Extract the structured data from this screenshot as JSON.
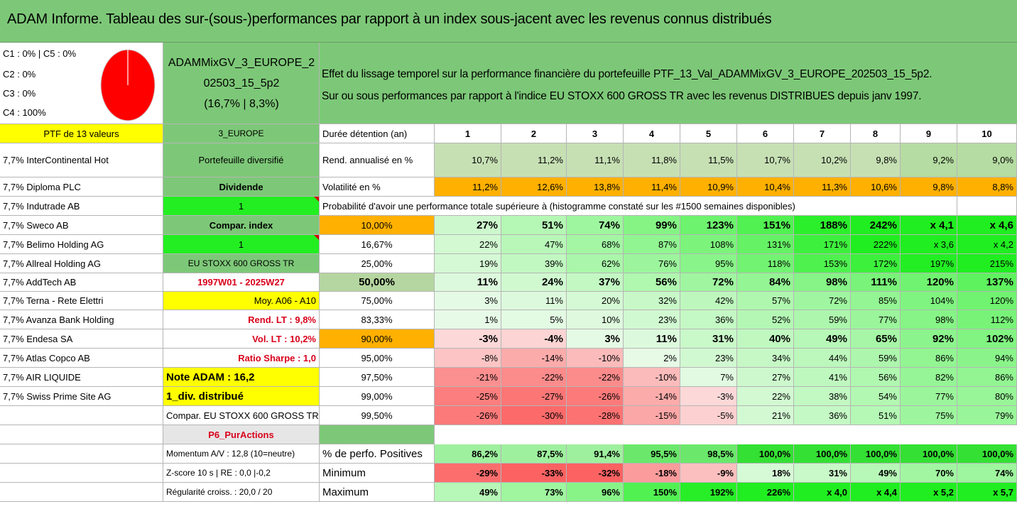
{
  "title": "ADAM Informe. Tableau des sur-(sous-)performances par rapport à un index sous-jacent avec les revenus connus distribués",
  "classes": [
    "C1 : 0% | C5 : 0%",
    "C2 : 0%",
    "C3 : 0%",
    "C4 : 100%"
  ],
  "pie_color": "#ff0000",
  "portfolio_name": [
    "ADAMMixGV_3_EUROPE_2",
    "02503_15_5p2",
    "(16,7% | 8,3%)"
  ],
  "effect_text": [
    "Effet du lissage temporel sur la performance financière du portefeuille PTF_13_Val_ADAMMixGV_3_EUROPE_202503_15_5p2.",
    "Sur ou sous performances par rapport à l'indice EU STOXX 600 GROSS TR avec les revenus DISTRIBUES depuis janv 1997."
  ],
  "col1": [
    "PTF de 13 valeurs",
    "7,7% InterContinental Hot",
    "7,7% Diploma PLC",
    "7,7% Indutrade AB",
    "7,7% Sweco AB",
    "7,7% Belimo Holding AG",
    "7,7% Allreal Holding AG",
    "7,7% AddTech AB",
    "7,7% Terna - Rete Elettri",
    "7,7% Avanza Bank Holding",
    "7,7% Endesa SA",
    "7,7% Atlas Copco AB",
    "7,7% AIR LIQUIDE",
    "7,7% Swiss Prime Site AG"
  ],
  "col2": [
    "3_EUROPE",
    "Portefeuille diversifié",
    "Dividende",
    "1",
    "Compar. index",
    "1",
    "EU STOXX 600 GROSS TR",
    "1997W01 - 2025W27",
    "Moy. A06 - A10",
    "Rend. LT : 9,8%",
    "Vol. LT : 10,2%",
    "Ratio Sharpe : 1,0",
    "Note ADAM : 16,2",
    "1_div. distribué",
    "Compar. EU STOXX 600 GROSS TR",
    "P6_PurActions",
    "Momentum A/V : 12,8 (10=neutre)",
    "Z-score 10 s | RE : 0,0 |-0,2",
    "Régularité croiss. : 20,0 / 20"
  ],
  "header": {
    "label": "Durée détention (an)",
    "years": [
      "1",
      "2",
      "3",
      "4",
      "5",
      "6",
      "7",
      "8",
      "9",
      "10"
    ]
  },
  "rend": {
    "label": "Rend. annualisé en %",
    "values": [
      "10,7%",
      "11,2%",
      "11,1%",
      "11,8%",
      "11,5%",
      "10,7%",
      "10,2%",
      "9,8%",
      "9,2%",
      "9,0%"
    ]
  },
  "vol": {
    "label": "Volatilité en %",
    "values": [
      "11,2%",
      "12,6%",
      "13,8%",
      "11,4%",
      "10,9%",
      "10,4%",
      "11,3%",
      "10,6%",
      "9,8%",
      "8,8%"
    ]
  },
  "prob_title": "Probabilité d'avoir une performance totale supérieure à (histogramme constaté sur les #1500 semaines disponibles)",
  "prob_rows": [
    {
      "p": "10,00%",
      "v": [
        "27%",
        "51%",
        "74%",
        "99%",
        "123%",
        "151%",
        "188%",
        "242%",
        "x 4,1",
        "x 4,6"
      ]
    },
    {
      "p": "16,67%",
      "v": [
        "22%",
        "47%",
        "68%",
        "87%",
        "108%",
        "131%",
        "171%",
        "222%",
        "x 3,6",
        "x 4,2"
      ]
    },
    {
      "p": "25,00%",
      "v": [
        "19%",
        "39%",
        "62%",
        "76%",
        "95%",
        "118%",
        "153%",
        "172%",
        "197%",
        "215%"
      ]
    },
    {
      "p": "50,00%",
      "v": [
        "11%",
        "24%",
        "37%",
        "56%",
        "72%",
        "84%",
        "98%",
        "111%",
        "120%",
        "137%"
      ]
    },
    {
      "p": "75,00%",
      "v": [
        "3%",
        "11%",
        "20%",
        "32%",
        "42%",
        "57%",
        "72%",
        "85%",
        "104%",
        "120%"
      ]
    },
    {
      "p": "83,33%",
      "v": [
        "1%",
        "5%",
        "10%",
        "23%",
        "36%",
        "52%",
        "59%",
        "77%",
        "98%",
        "112%"
      ]
    },
    {
      "p": "90,00%",
      "v": [
        "-3%",
        "-4%",
        "3%",
        "11%",
        "31%",
        "40%",
        "49%",
        "65%",
        "92%",
        "102%"
      ]
    },
    {
      "p": "95,00%",
      "v": [
        "-8%",
        "-14%",
        "-10%",
        "2%",
        "23%",
        "34%",
        "44%",
        "59%",
        "86%",
        "94%"
      ]
    },
    {
      "p": "97,50%",
      "v": [
        "-21%",
        "-22%",
        "-22%",
        "-10%",
        "7%",
        "27%",
        "41%",
        "56%",
        "82%",
        "86%"
      ]
    },
    {
      "p": "99,00%",
      "v": [
        "-25%",
        "-27%",
        "-26%",
        "-14%",
        "-3%",
        "22%",
        "38%",
        "54%",
        "77%",
        "80%"
      ]
    },
    {
      "p": "99,50%",
      "v": [
        "-26%",
        "-30%",
        "-28%",
        "-15%",
        "-5%",
        "21%",
        "36%",
        "51%",
        "75%",
        "79%"
      ]
    }
  ],
  "stats": [
    {
      "label": "% de perfo. Positives",
      "v": [
        "86,2%",
        "87,5%",
        "91,4%",
        "95,5%",
        "98,5%",
        "100,0%",
        "100,0%",
        "100,0%",
        "100,0%",
        "100,0%"
      ]
    },
    {
      "label": "Minimum",
      "v": [
        "-29%",
        "-33%",
        "-32%",
        "-18%",
        "-9%",
        "18%",
        "31%",
        "49%",
        "70%",
        "74%"
      ]
    },
    {
      "label": "Maximum",
      "v": [
        "49%",
        "73%",
        "96%",
        "150%",
        "192%",
        "226%",
        "x 4,0",
        "x 4,4",
        "x 5,2",
        "x 5,7"
      ]
    }
  ]
}
